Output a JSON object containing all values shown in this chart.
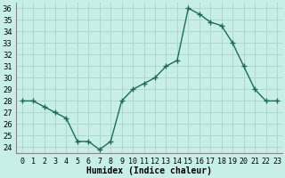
{
  "x": [
    0,
    1,
    2,
    3,
    4,
    5,
    6,
    7,
    8,
    9,
    10,
    11,
    12,
    13,
    14,
    15,
    16,
    17,
    18,
    19,
    20,
    21,
    22,
    23
  ],
  "y": [
    28,
    28,
    27.5,
    27,
    26.5,
    24.5,
    24.5,
    23.8,
    24.5,
    28,
    29,
    29.5,
    30,
    31,
    31.5,
    36,
    35.5,
    34.8,
    34.5,
    33,
    31,
    29,
    28,
    28
  ],
  "xlabel": "Humidex (Indice chaleur)",
  "xlim": [
    -0.5,
    23.5
  ],
  "ylim": [
    23.5,
    36.5
  ],
  "yticks": [
    24,
    25,
    26,
    27,
    28,
    29,
    30,
    31,
    32,
    33,
    34,
    35,
    36
  ],
  "xtick_labels": [
    "0",
    "1",
    "2",
    "3",
    "4",
    "5",
    "6",
    "7",
    "8",
    "9",
    "10",
    "11",
    "12",
    "13",
    "14",
    "15",
    "16",
    "17",
    "18",
    "19",
    "20",
    "21",
    "22",
    "23"
  ],
  "line_color": "#1e6b5e",
  "marker": "+",
  "bg_color": "#c8eee8",
  "grid_color": "#b0d8d0",
  "label_fontsize": 7,
  "tick_fontsize": 6,
  "linewidth": 1.0,
  "markersize": 4
}
